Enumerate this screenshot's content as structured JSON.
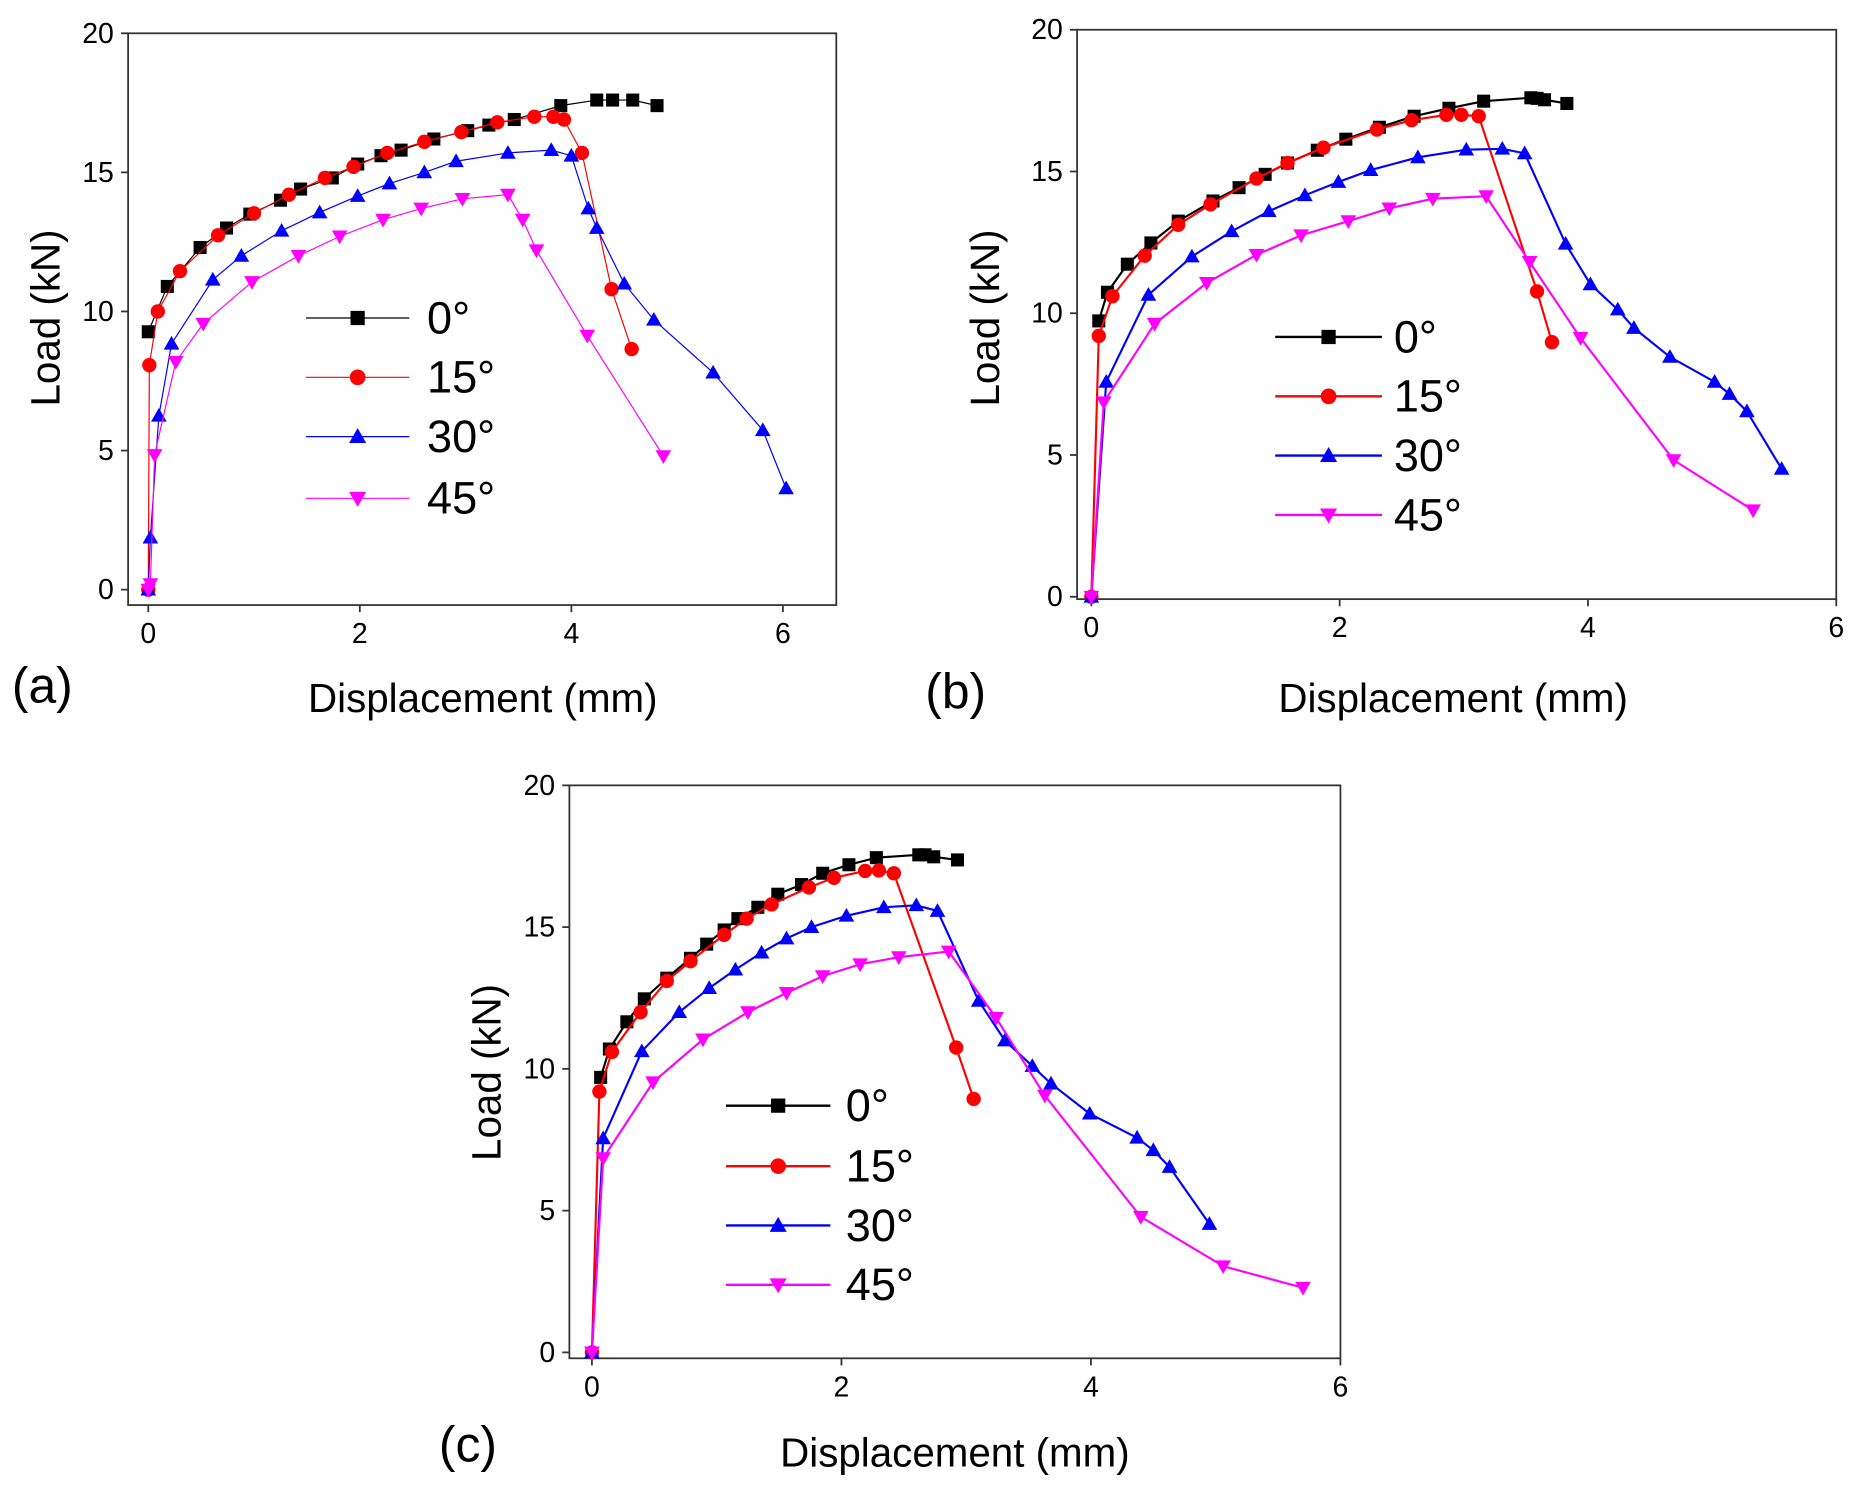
{
  "chart_data": [
    {
      "type": "line",
      "panel_label": "(a)",
      "xlabel": "Displacement (mm)",
      "ylabel": "Load (kN)",
      "xlim": [
        0,
        6
      ],
      "ylim": [
        0,
        20
      ],
      "xticks": [
        "0",
        "2",
        "4",
        "6"
      ],
      "yticks": [
        "0",
        "5",
        "10",
        "15",
        "20"
      ],
      "legend_position": "center",
      "series": [
        {
          "name": "0°",
          "color": "#000000",
          "marker": "square",
          "x": [
            0.0,
            0.18,
            0.49,
            0.74,
            0.96,
            1.25,
            1.44,
            1.74,
            1.98,
            2.2,
            2.39,
            2.7,
            3.02,
            3.22,
            3.46,
            3.9,
            4.24,
            4.39,
            4.58,
            4.81
          ],
          "y": [
            9.27,
            10.9,
            12.3,
            13.0,
            13.5,
            14.0,
            14.4,
            14.8,
            15.3,
            15.6,
            15.8,
            16.2,
            16.5,
            16.7,
            16.9,
            17.4,
            17.6,
            17.6,
            17.6,
            17.4
          ]
        },
        {
          "name": "15°",
          "color": "#ff0000",
          "marker": "circle",
          "x": [
            0,
            0.01,
            0.09,
            0.3,
            0.66,
            1.0,
            1.33,
            1.67,
            1.94,
            2.26,
            2.61,
            2.96,
            3.3,
            3.65,
            3.83,
            3.93,
            4.1,
            4.38,
            4.57
          ],
          "y": [
            0,
            8.07,
            10.0,
            11.45,
            12.74,
            13.53,
            14.2,
            14.8,
            15.2,
            15.7,
            16.1,
            16.45,
            16.8,
            17.0,
            17.0,
            16.9,
            15.7,
            10.8,
            8.65
          ]
        },
        {
          "name": "30°",
          "color": "#0000ff",
          "marker": "triangle-up",
          "x": [
            0,
            0.02,
            0.1,
            0.22,
            0.61,
            0.88,
            1.26,
            1.62,
            1.98,
            2.28,
            2.61,
            2.91,
            3.4,
            3.81,
            4.0,
            4.16,
            4.24,
            4.5,
            4.78,
            5.34,
            5.81,
            6.03
          ],
          "y": [
            0,
            1.87,
            6.25,
            8.84,
            11.14,
            12.0,
            12.9,
            13.56,
            14.15,
            14.6,
            15.0,
            15.4,
            15.7,
            15.8,
            15.6,
            13.7,
            13.0,
            11.0,
            9.7,
            7.8,
            5.73,
            3.64
          ]
        },
        {
          "name": "45°",
          "color": "#ff00ff",
          "marker": "triangle-down",
          "x": [
            0,
            0.02,
            0.06,
            0.26,
            0.52,
            0.98,
            1.42,
            1.81,
            2.22,
            2.58,
            2.97,
            3.4,
            3.54,
            3.67,
            4.15,
            4.87
          ],
          "y": [
            0,
            0.2,
            4.84,
            8.19,
            9.56,
            11.06,
            12.0,
            12.7,
            13.3,
            13.7,
            14.05,
            14.2,
            13.3,
            12.2,
            9.13,
            4.8
          ]
        }
      ]
    },
    {
      "type": "line",
      "panel_label": "(b)",
      "xlabel": "Displacement (mm)",
      "ylabel": "Load (kN)",
      "xlim": [
        0,
        6
      ],
      "ylim": [
        0,
        20
      ],
      "xticks": [
        "0",
        "2",
        "4",
        "6"
      ],
      "yticks": [
        "0",
        "5",
        "10",
        "15",
        "20"
      ],
      "legend_position": "center",
      "series": [
        {
          "name": "0°",
          "color": "#000000",
          "marker": "square",
          "x": [
            0.06,
            0.13,
            0.29,
            0.48,
            0.7,
            0.98,
            1.19,
            1.4,
            1.58,
            1.82,
            2.05,
            2.32,
            2.6,
            2.88,
            3.16,
            3.54,
            3.59,
            3.65,
            3.83
          ],
          "y": [
            9.73,
            10.74,
            11.73,
            12.48,
            13.25,
            13.96,
            14.43,
            14.9,
            15.3,
            15.75,
            16.14,
            16.56,
            16.95,
            17.23,
            17.48,
            17.6,
            17.58,
            17.53,
            17.4
          ]
        },
        {
          "name": "15°",
          "color": "#ff0000",
          "marker": "circle",
          "x": [
            0,
            0.06,
            0.17,
            0.43,
            0.7,
            0.96,
            1.33,
            1.58,
            1.87,
            2.3,
            2.58,
            2.86,
            2.98,
            3.12,
            3.59,
            3.71
          ],
          "y": [
            0,
            9.2,
            10.6,
            12.03,
            13.12,
            13.84,
            14.75,
            15.3,
            15.84,
            16.48,
            16.81,
            17.0,
            17.0,
            16.95,
            10.77,
            8.98
          ]
        },
        {
          "name": "30°",
          "color": "#0000ff",
          "marker": "triangle-up",
          "x": [
            0,
            0.12,
            0.46,
            0.81,
            1.13,
            1.43,
            1.72,
            1.99,
            2.25,
            2.63,
            3.02,
            3.31,
            3.49,
            3.82,
            4.02,
            4.24,
            4.37,
            4.66,
            5.02,
            5.14,
            5.28,
            5.56
          ],
          "y": [
            0,
            7.58,
            10.65,
            12.0,
            12.89,
            13.6,
            14.16,
            14.63,
            15.05,
            15.5,
            15.77,
            15.8,
            15.64,
            12.45,
            11.02,
            10.13,
            9.48,
            8.46,
            7.58,
            7.15,
            6.54,
            4.51
          ]
        },
        {
          "name": "45°",
          "color": "#ff00ff",
          "marker": "triangle-down",
          "x": [
            0,
            0.1,
            0.51,
            0.93,
            1.33,
            1.69,
            2.07,
            2.4,
            2.75,
            3.18,
            3.53,
            3.94,
            4.69,
            5.33
          ],
          "y": [
            0,
            6.86,
            9.63,
            11.07,
            12.06,
            12.75,
            13.25,
            13.7,
            14.04,
            14.13,
            11.81,
            9.13,
            4.82,
            3.05
          ]
        }
      ]
    },
    {
      "type": "line",
      "panel_label": "(c)",
      "xlabel": "Displacement (mm)",
      "ylabel": "Load (kN)",
      "xlim": [
        0,
        6
      ],
      "ylim": [
        0,
        20
      ],
      "xticks": [
        "0",
        "2",
        "4",
        "6"
      ],
      "yticks": [
        "0",
        "5",
        "10",
        "15",
        "20"
      ],
      "legend_position": "center-left",
      "series": [
        {
          "name": "0°",
          "color": "#000000",
          "marker": "square",
          "x": [
            0.07,
            0.14,
            0.28,
            0.42,
            0.6,
            0.79,
            0.92,
            1.06,
            1.17,
            1.33,
            1.49,
            1.68,
            1.85,
            2.06,
            2.28,
            2.62,
            2.67,
            2.74,
            2.93
          ],
          "y": [
            9.7,
            10.7,
            11.66,
            12.47,
            13.2,
            13.9,
            14.4,
            14.9,
            15.3,
            15.7,
            16.16,
            16.5,
            16.9,
            17.2,
            17.45,
            17.55,
            17.55,
            17.48,
            17.37
          ]
        },
        {
          "name": "15°",
          "color": "#ff0000",
          "marker": "circle",
          "x": [
            0,
            0.06,
            0.16,
            0.39,
            0.6,
            0.79,
            1.06,
            1.24,
            1.44,
            1.74,
            1.94,
            2.19,
            2.3,
            2.42,
            2.92,
            3.06
          ],
          "y": [
            0,
            9.2,
            10.6,
            12.0,
            13.1,
            13.8,
            14.73,
            15.3,
            15.8,
            16.4,
            16.74,
            16.98,
            17.0,
            16.9,
            10.75,
            8.94
          ]
        },
        {
          "name": "30°",
          "color": "#0000ff",
          "marker": "triangle-up",
          "x": [
            0,
            0.09,
            0.4,
            0.7,
            0.94,
            1.15,
            1.36,
            1.56,
            1.76,
            2.04,
            2.34,
            2.6,
            2.77,
            3.1,
            3.31,
            3.53,
            3.68,
            3.99,
            4.37,
            4.5,
            4.63,
            4.95
          ],
          "y": [
            0,
            7.55,
            10.62,
            12.0,
            12.85,
            13.5,
            14.1,
            14.6,
            15.0,
            15.4,
            15.7,
            15.77,
            15.57,
            12.4,
            11.0,
            10.1,
            9.48,
            8.42,
            7.57,
            7.13,
            6.54,
            4.53
          ]
        },
        {
          "name": "45°",
          "color": "#ff00ff",
          "marker": "triangle-down",
          "x": [
            0,
            0.09,
            0.49,
            0.89,
            1.25,
            1.56,
            1.85,
            2.15,
            2.46,
            2.86,
            3.24,
            3.63,
            4.4,
            5.06,
            5.7
          ],
          "y": [
            0,
            6.85,
            9.53,
            11.04,
            12.0,
            12.68,
            13.27,
            13.69,
            13.94,
            14.14,
            11.8,
            9.06,
            4.78,
            3.04,
            2.28
          ]
        }
      ]
    }
  ]
}
